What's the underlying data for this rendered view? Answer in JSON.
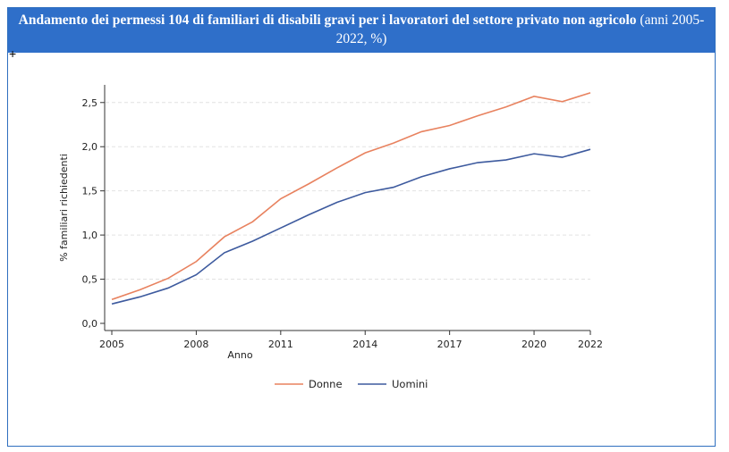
{
  "header": {
    "title_bold": "Andamento dei permessi 104 di familiari di disabili gravi per i lavoratori del settore privato non agricolo",
    "title_rest": "(anni 2005-2022, %)",
    "corner_mark": "+"
  },
  "colors": {
    "header_bg": "#2f6fc9",
    "donne": "#e8825f",
    "uomini": "#3d5a9e"
  },
  "chart_data": {
    "type": "line",
    "xlabel": "Anno",
    "ylabel": "% familiari richiedenti",
    "xticks": [
      "2005",
      "2008",
      "2011",
      "2014",
      "2017",
      "2020",
      "2022"
    ],
    "yticks": [
      "0,0",
      "0,5",
      "1,0",
      "1,5",
      "2,0",
      "2,5"
    ],
    "ylim": [
      0,
      2.7
    ],
    "xlim": [
      2005,
      2022
    ],
    "grid": "horizontal dashed",
    "legend_position": "bottom",
    "x": [
      2005,
      2006,
      2007,
      2008,
      2009,
      2010,
      2011,
      2012,
      2013,
      2014,
      2015,
      2016,
      2017,
      2018,
      2019,
      2020,
      2021,
      2022
    ],
    "series": [
      {
        "name": "Donne",
        "color": "#e8825f",
        "values": [
          0.27,
          0.38,
          0.51,
          0.7,
          0.98,
          1.15,
          1.41,
          1.58,
          1.76,
          1.93,
          2.04,
          2.17,
          2.24,
          2.35,
          2.45,
          2.57,
          2.51,
          2.61
        ]
      },
      {
        "name": "Uomini",
        "color": "#3d5a9e",
        "values": [
          0.22,
          0.3,
          0.4,
          0.55,
          0.8,
          0.93,
          1.08,
          1.23,
          1.37,
          1.48,
          1.54,
          1.66,
          1.75,
          1.82,
          1.85,
          1.92,
          1.88,
          1.97
        ]
      }
    ]
  }
}
